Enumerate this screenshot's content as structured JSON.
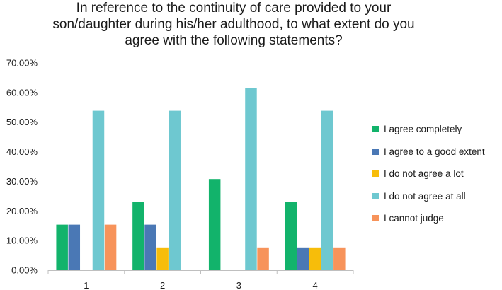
{
  "chart_data": {
    "type": "bar",
    "title_lines": [
      "In reference to the continuity of care provided to your",
      "son/daughter during his/her adulthood, to what extent do you",
      "agree with the following statements?"
    ],
    "categories": [
      "1",
      "2",
      "3",
      "4"
    ],
    "series": [
      {
        "name": "I agree completely",
        "color": "#12b36b",
        "values": [
          15.38,
          23.08,
          30.77,
          23.08
        ]
      },
      {
        "name": "I agree to a good extent",
        "color": "#4a78b5",
        "values": [
          15.38,
          15.38,
          0,
          7.69
        ]
      },
      {
        "name": "I do not agree a lot",
        "color": "#f7bd0a",
        "values": [
          0,
          7.69,
          0,
          7.69
        ]
      },
      {
        "name": "I do not agree at all",
        "color": "#6ec8d0",
        "values": [
          53.85,
          53.85,
          61.54,
          53.85
        ]
      },
      {
        "name": "I cannot judge",
        "color": "#f7935a",
        "values": [
          15.38,
          0,
          7.69,
          7.69
        ]
      }
    ],
    "yticks": [
      "0.00%",
      "10.00%",
      "20.00%",
      "30.00%",
      "40.00%",
      "50.00%",
      "60.00%",
      "70.00%"
    ],
    "ylim": [
      0,
      70
    ],
    "xlabel": "",
    "ylabel": "",
    "grid": false,
    "legend_position": "right"
  }
}
